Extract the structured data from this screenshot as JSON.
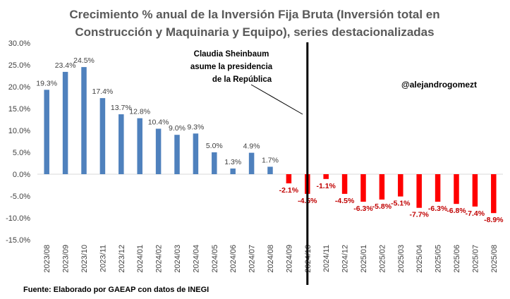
{
  "chart_data": {
    "type": "bar",
    "title_lines": [
      "Crecimiento % anual de la Inversión Fija Bruta (Inversión total en",
      "Construcción y Maquinaria y Equipo), series destacionalizadas"
    ],
    "categories": [
      "2023/08",
      "2023/09",
      "2023/10",
      "2023/11",
      "2023/12",
      "2024/01",
      "2024/02",
      "2024/03",
      "2024/04",
      "2024/05",
      "2024/06",
      "2024/07",
      "2024/08",
      "2024/09",
      "2024/10",
      "2024/11",
      "2024/12",
      "2025/01",
      "2025/02",
      "2025/03",
      "2025/04",
      "2025/05",
      "2025/06",
      "2025/07",
      "2025/08"
    ],
    "values": [
      19.3,
      23.4,
      24.5,
      17.4,
      13.7,
      12.8,
      10.4,
      9.0,
      9.3,
      5.0,
      1.3,
      4.9,
      1.7,
      -2.1,
      -4.5,
      -1.1,
      -4.5,
      -6.3,
      -5.8,
      -5.1,
      -7.7,
      -6.3,
      -6.8,
      -7.4,
      -8.9
    ],
    "data_labels": [
      "19.3%",
      "23.4%",
      "24.5%",
      "17.4%",
      "13.7%",
      "12.8%",
      "10.4%",
      "9.0%",
      "9.3%",
      "5.0%",
      "1.3%",
      "4.9%",
      "1.7%",
      "-2.1%",
      "-4.5%",
      "-1.1%",
      "-4.5%",
      "-6.3%",
      "-5.8%",
      "-5.1%",
      "-7.7%",
      "-6.3%",
      "-6.8%",
      "-7.4%",
      "-8.9%"
    ],
    "ylim": [
      -15,
      30
    ],
    "yticks": [
      30,
      25,
      20,
      15,
      10,
      5,
      0,
      -5,
      -10,
      -15
    ],
    "ytick_labels": [
      "30.0%",
      "25.0%",
      "20.0%",
      "15.0%",
      "10.0%",
      "5.0%",
      "0.0%",
      "-5.0%",
      "-10.0%",
      "-15.0%"
    ],
    "xlabel": "",
    "ylabel": "",
    "grid": false,
    "legend": "none",
    "colors": {
      "positive": "#4f81bd",
      "negative": "#ff0000",
      "negative_label": "#c00000",
      "marker_line": "#000000"
    },
    "marker_category": "2024/10",
    "annotation_lines": [
      "Claudia Sheinbaum",
      "asume la presidencia",
      "de la República"
    ],
    "handle": "@alejandrogomezt",
    "source": "Fuente: Elaborado por GAEAP con datos de INEGI"
  }
}
